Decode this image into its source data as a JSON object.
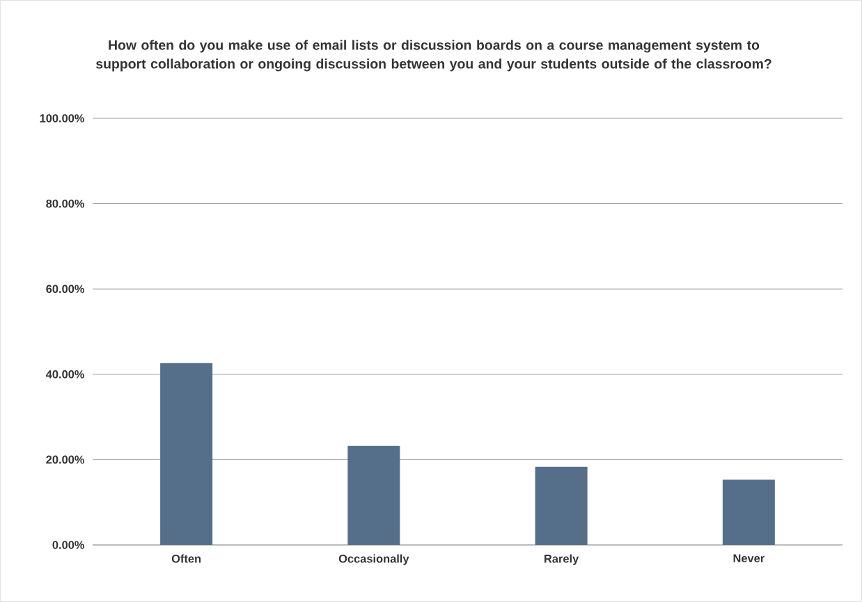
{
  "chart_data": {
    "type": "bar",
    "title": "How often do you make use of email lists or discussion boards on a course management system to support collaboration or ongoing discussion between you and your students outside of the classroom?",
    "categories": [
      "Often",
      "Occasionally",
      "Rarely",
      "Never"
    ],
    "values": [
      42.6,
      23.2,
      18.3,
      15.3
    ],
    "color": "#556e8a",
    "ylim": [
      0,
      100
    ],
    "yticks": [
      {
        "value": 0,
        "label": "0.00%"
      },
      {
        "value": 20,
        "label": "20.00%"
      },
      {
        "value": 40,
        "label": "40.00%"
      },
      {
        "value": 60,
        "label": "60.00%"
      },
      {
        "value": 80,
        "label": "80.00%"
      },
      {
        "value": 100,
        "label": "100.00%"
      }
    ],
    "grid": "y"
  }
}
